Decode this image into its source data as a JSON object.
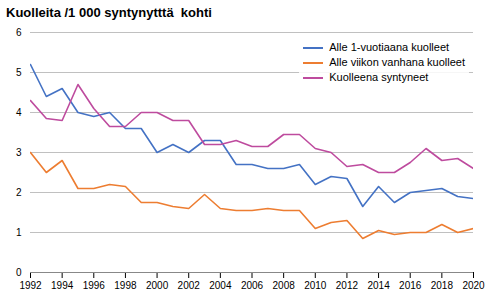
{
  "chart_data": {
    "type": "line",
    "title": "Kuolleita /1 000 syntynytttä  kohti",
    "x": [
      1992,
      1993,
      1994,
      1995,
      1996,
      1997,
      1998,
      1999,
      2000,
      2001,
      2002,
      2003,
      2004,
      2005,
      2006,
      2007,
      2008,
      2009,
      2010,
      2011,
      2012,
      2013,
      2014,
      2015,
      2016,
      2017,
      2018,
      2019,
      2020
    ],
    "series": [
      {
        "name": "Alle 1-vuotiaana kuolleet",
        "color": "#4472c4",
        "values": [
          5.2,
          4.4,
          4.6,
          4.0,
          3.9,
          4.0,
          3.6,
          3.6,
          3.0,
          3.2,
          3.0,
          3.3,
          3.3,
          2.7,
          2.7,
          2.6,
          2.6,
          2.7,
          2.2,
          2.4,
          2.35,
          1.65,
          2.15,
          1.75,
          2.0,
          2.05,
          2.1,
          1.9,
          1.85
        ]
      },
      {
        "name": "Alle viikon vanhana kuolleet",
        "color": "#ed7d31",
        "values": [
          3.0,
          2.5,
          2.8,
          2.1,
          2.1,
          2.2,
          2.15,
          1.75,
          1.75,
          1.65,
          1.6,
          1.95,
          1.6,
          1.55,
          1.55,
          1.6,
          1.55,
          1.55,
          1.1,
          1.25,
          1.3,
          0.85,
          1.05,
          0.95,
          1.0,
          1.0,
          1.2,
          1.0,
          1.1
        ]
      },
      {
        "name": "Kuolleena syntyneet",
        "color": "#be4b9e",
        "values": [
          4.3,
          3.85,
          3.8,
          4.7,
          4.1,
          3.65,
          3.65,
          4.0,
          4.0,
          3.8,
          3.8,
          3.2,
          3.2,
          3.3,
          3.15,
          3.15,
          3.45,
          3.45,
          3.1,
          3.0,
          2.65,
          2.7,
          2.5,
          2.5,
          2.75,
          3.1,
          2.8,
          2.85,
          2.6
        ]
      }
    ],
    "xlim": [
      1992,
      2020
    ],
    "xticks": [
      1992,
      1994,
      1996,
      1998,
      2000,
      2002,
      2004,
      2006,
      2008,
      2010,
      2012,
      2014,
      2016,
      2018,
      2020
    ],
    "ylim": [
      0,
      6
    ],
    "yticks": [
      0,
      1,
      2,
      3,
      4,
      5,
      6
    ],
    "grid": true,
    "legend": "upper right"
  }
}
